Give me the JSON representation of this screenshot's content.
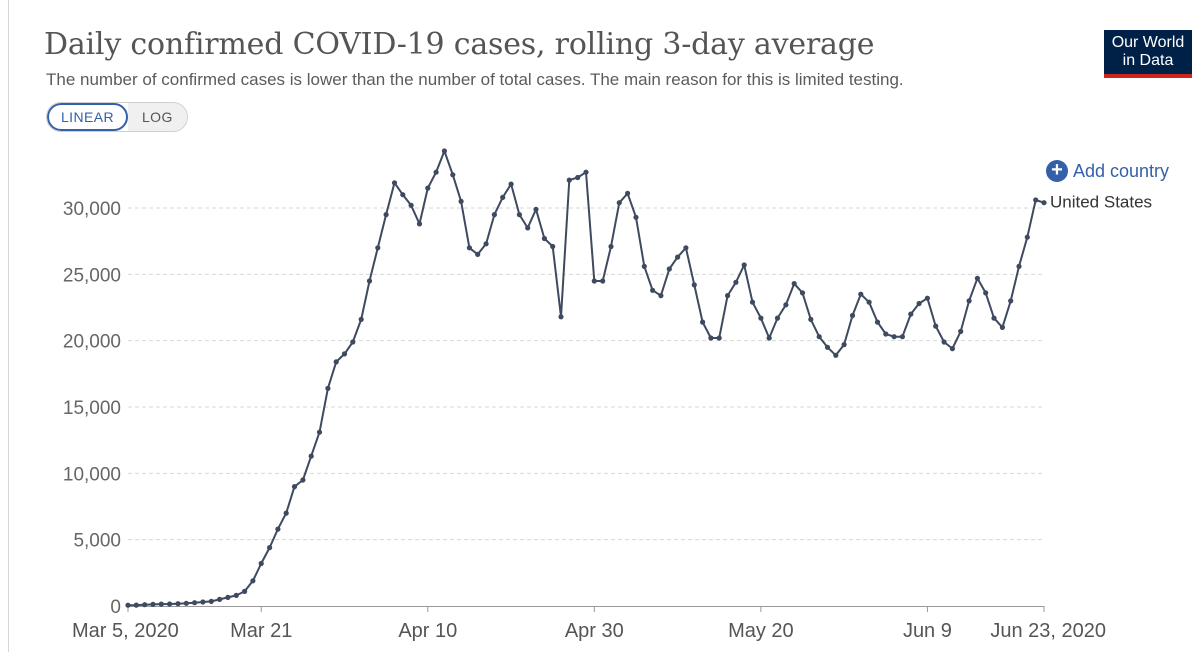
{
  "header": {
    "title": "Daily confirmed COVID-19 cases, rolling 3-day average",
    "subtitle": "The number of confirmed cases is lower than the number of total cases. The main reason for this is limited testing.",
    "logo_line1": "Our World",
    "logo_line2": "in Data"
  },
  "controls": {
    "linear_label": "LINEAR",
    "log_label": "LOG",
    "add_country_label": "Add country"
  },
  "colors": {
    "series": "#3e4a5f",
    "accent": "#3360a9",
    "logo_bg": "#002147",
    "logo_bar": "#ce261e"
  },
  "chart_data": {
    "type": "line",
    "title": "Daily confirmed COVID-19 cases, rolling 3-day average",
    "subtitle": "The number of confirmed cases is lower than the number of total cases. The main reason for this is limited testing.",
    "x_start": "2020-03-05",
    "x_end": "2020-06-23",
    "x_tick_labels": [
      "Mar 5, 2020",
      "Mar 21",
      "Apr 10",
      "Apr 30",
      "May 20",
      "Jun 9",
      "Jun 23, 2020"
    ],
    "x_tick_dates": [
      "2020-03-05",
      "2020-03-21",
      "2020-04-10",
      "2020-04-30",
      "2020-05-20",
      "2020-06-09",
      "2020-06-23"
    ],
    "y_ticks": [
      0,
      5000,
      10000,
      15000,
      20000,
      25000,
      30000
    ],
    "y_tick_labels": [
      "0",
      "5,000",
      "10,000",
      "15,000",
      "20,000",
      "25,000",
      "30,000"
    ],
    "ylim": [
      0,
      35000
    ],
    "grid": true,
    "legend": "end-of-line label",
    "series": [
      {
        "name": "United States",
        "x": [
          "2020-03-05",
          "2020-03-06",
          "2020-03-07",
          "2020-03-08",
          "2020-03-09",
          "2020-03-10",
          "2020-03-11",
          "2020-03-12",
          "2020-03-13",
          "2020-03-14",
          "2020-03-15",
          "2020-03-16",
          "2020-03-17",
          "2020-03-18",
          "2020-03-19",
          "2020-03-20",
          "2020-03-21",
          "2020-03-22",
          "2020-03-23",
          "2020-03-24",
          "2020-03-25",
          "2020-03-26",
          "2020-03-27",
          "2020-03-28",
          "2020-03-29",
          "2020-03-30",
          "2020-03-31",
          "2020-04-01",
          "2020-04-02",
          "2020-04-03",
          "2020-04-04",
          "2020-04-05",
          "2020-04-06",
          "2020-04-07",
          "2020-04-08",
          "2020-04-09",
          "2020-04-10",
          "2020-04-11",
          "2020-04-12",
          "2020-04-13",
          "2020-04-14",
          "2020-04-15",
          "2020-04-16",
          "2020-04-17",
          "2020-04-18",
          "2020-04-19",
          "2020-04-20",
          "2020-04-21",
          "2020-04-22",
          "2020-04-23",
          "2020-04-24",
          "2020-04-25",
          "2020-04-26",
          "2020-04-27",
          "2020-04-28",
          "2020-04-29",
          "2020-04-30",
          "2020-05-01",
          "2020-05-02",
          "2020-05-03",
          "2020-05-04",
          "2020-05-05",
          "2020-05-06",
          "2020-05-07",
          "2020-05-08",
          "2020-05-09",
          "2020-05-10",
          "2020-05-11",
          "2020-05-12",
          "2020-05-13",
          "2020-05-14",
          "2020-05-15",
          "2020-05-16",
          "2020-05-17",
          "2020-05-18",
          "2020-05-19",
          "2020-05-20",
          "2020-05-21",
          "2020-05-22",
          "2020-05-23",
          "2020-05-24",
          "2020-05-25",
          "2020-05-26",
          "2020-05-27",
          "2020-05-28",
          "2020-05-29",
          "2020-05-30",
          "2020-05-31",
          "2020-06-01",
          "2020-06-02",
          "2020-06-03",
          "2020-06-04",
          "2020-06-05",
          "2020-06-06",
          "2020-06-07",
          "2020-06-08",
          "2020-06-09",
          "2020-06-10",
          "2020-06-11",
          "2020-06-12",
          "2020-06-13",
          "2020-06-14",
          "2020-06-15",
          "2020-06-16",
          "2020-06-17",
          "2020-06-18",
          "2020-06-19",
          "2020-06-20",
          "2020-06-21",
          "2020-06-22",
          "2020-06-23"
        ],
        "values": [
          60,
          70,
          100,
          120,
          140,
          150,
          170,
          200,
          250,
          300,
          350,
          500,
          650,
          800,
          1100,
          1900,
          3200,
          4400,
          5800,
          7000,
          9000,
          9500,
          11300,
          13100,
          16400,
          18400,
          19000,
          19900,
          21600,
          24500,
          27000,
          29500,
          31900,
          31000,
          30200,
          28800,
          31500,
          32700,
          34300,
          32500,
          30500,
          27000,
          26500,
          27300,
          29500,
          30800,
          31800,
          29500,
          28500,
          29900,
          27700,
          27100,
          21800,
          32100,
          32300,
          32700,
          24500,
          24500,
          27100,
          30400,
          31100,
          29300,
          25600,
          23800,
          23400,
          25400,
          26300,
          27000,
          24200,
          21400,
          20200,
          20200,
          23400,
          24400,
          25700,
          22900,
          21700,
          20200,
          21700,
          22700,
          24300,
          23600,
          21600,
          20300,
          19500,
          18900,
          19700,
          21900,
          23500,
          22900,
          21400,
          20500,
          20300,
          20300,
          22000,
          22800,
          23200,
          21100,
          19900,
          19400,
          20700,
          23000,
          24700,
          23600,
          21700,
          21000,
          23000,
          25600,
          27800,
          30600,
          30400
        ]
      }
    ]
  }
}
